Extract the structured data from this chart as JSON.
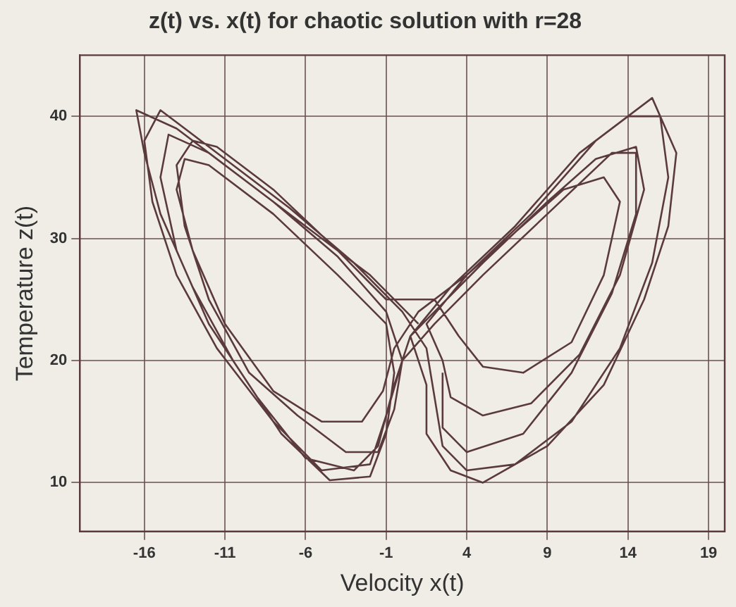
{
  "chart_data": {
    "type": "line",
    "title": "z(t) vs. x(t) for chaotic solution with r=28",
    "xlabel": "Velocity x(t)",
    "ylabel": "Temperature z(t)",
    "grid": true,
    "legend": false,
    "marker": "none",
    "line_style": "solid",
    "xlim": [
      -20,
      20
    ],
    "ylim": [
      6,
      45
    ],
    "xticks": [
      -16,
      -11,
      -6,
      -1,
      4,
      9,
      14,
      19
    ],
    "yticks": [
      10,
      20,
      30,
      40
    ],
    "series": [
      {
        "color": "#5a3a3a",
        "x": [
          1,
          -2,
          -6,
          -10,
          -14,
          -16.5,
          -16,
          -15,
          -13,
          -10.5,
          -7.5,
          -4.5,
          -2,
          -1,
          -0.5,
          -1,
          -4,
          -8,
          -12,
          -13.5,
          -14,
          -13,
          -11,
          -8,
          -5,
          -2.5,
          -1.2,
          -0.5,
          1,
          4,
          8,
          12,
          15.5,
          17,
          16.5,
          15,
          12.5,
          9,
          5,
          3,
          1.5,
          1.5,
          0.5,
          2,
          5,
          9,
          12,
          14.5,
          15,
          13.5,
          11,
          8,
          5,
          3,
          2.5,
          1.5,
          4,
          7,
          10,
          12.5,
          13.5,
          12.5,
          10.5,
          7.5,
          5,
          3.5,
          2,
          -1,
          -4,
          -8,
          -11.5,
          -13,
          -14,
          -13.5,
          -12,
          -9.5,
          -6.5,
          -3.5,
          -1.5,
          -0.5,
          0,
          -1,
          -4,
          -8,
          -12,
          -14.5,
          -15,
          -14,
          -12,
          -9,
          -6,
          -3,
          -1.5,
          -0.5,
          0.5,
          3,
          7,
          11,
          14,
          16,
          16.5,
          15.5,
          13.5,
          10.5,
          7,
          4,
          2.5,
          2,
          1.5,
          0,
          -3,
          -7,
          -11,
          -15,
          -16,
          -15.5,
          -14,
          -11.5,
          -8,
          -5,
          -2,
          -1,
          0,
          2,
          5,
          9,
          13,
          14.5,
          14.5,
          13,
          10.5,
          7.5,
          4,
          2.5,
          2.5
        ],
        "values": [
          23,
          27,
          31,
          35,
          39,
          40.5,
          37,
          32,
          26,
          20,
          14,
          10.2,
          10.5,
          14,
          19,
          23,
          27,
          32,
          36,
          36.5,
          34,
          29,
          23,
          17.5,
          15,
          15,
          17.5,
          21,
          24,
          27,
          32,
          38,
          41.5,
          37,
          31,
          25,
          18,
          13,
          10,
          11,
          14,
          18,
          22,
          24,
          28,
          33,
          36.5,
          37.5,
          34,
          27,
          20.5,
          16.5,
          15.5,
          17,
          20,
          23,
          27,
          30.5,
          34,
          35,
          33,
          27,
          21.5,
          19,
          19.5,
          22,
          25,
          25,
          29,
          34,
          37.5,
          38,
          36,
          31,
          25,
          19,
          15.5,
          12.5,
          12.5,
          16,
          20,
          24,
          28.5,
          33,
          37,
          38.5,
          35,
          29,
          23,
          17,
          12,
          11,
          13,
          18,
          22,
          26,
          31,
          37,
          40,
          40,
          35,
          28,
          21,
          15,
          11.5,
          11,
          13,
          17,
          21,
          24,
          28,
          32.5,
          36.5,
          40.5,
          38,
          33,
          27,
          21,
          15,
          11,
          11.5,
          15.5,
          20,
          23,
          27,
          32,
          37,
          37,
          32,
          25.5,
          19,
          14,
          12.5,
          14.5,
          19
        ]
      }
    ]
  }
}
